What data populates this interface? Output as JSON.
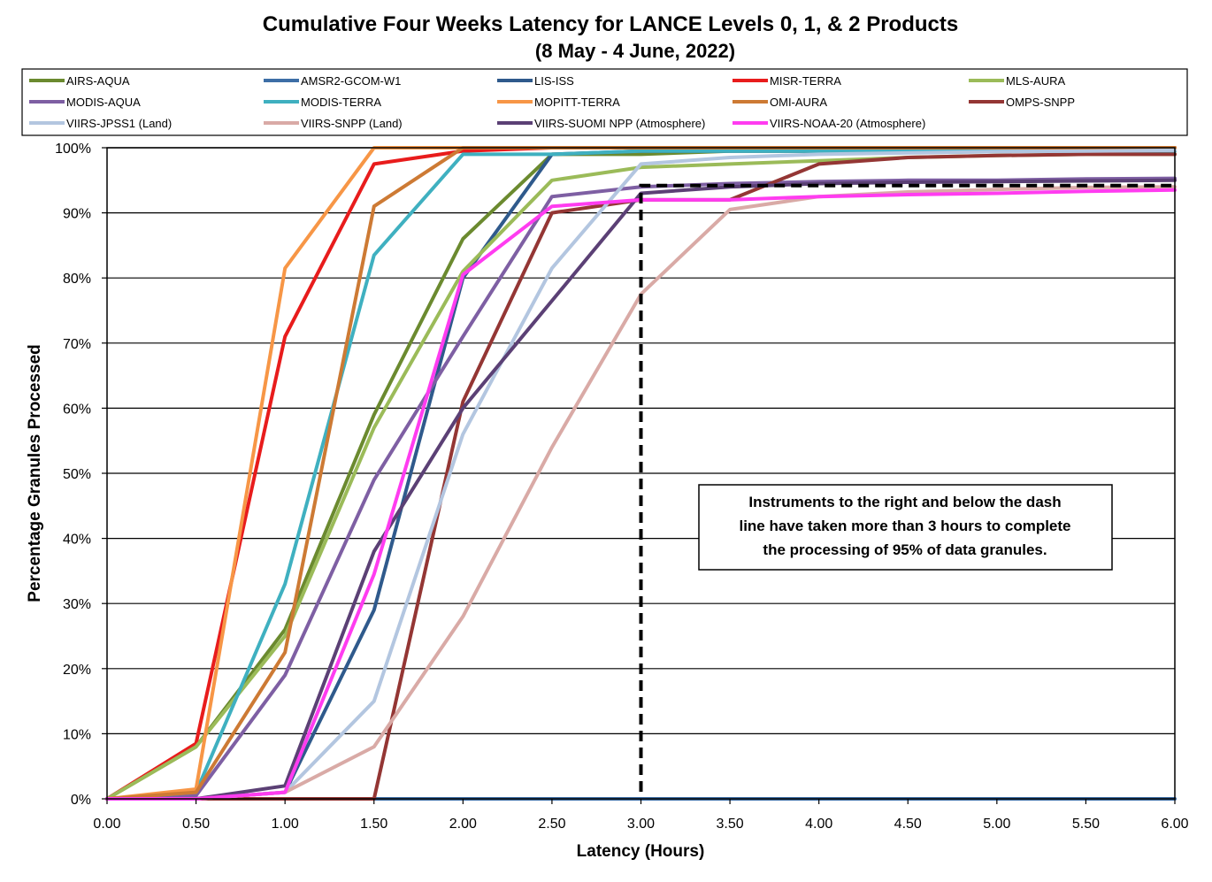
{
  "chart_data": {
    "type": "line",
    "title": "Cumulative Four Weeks Latency  for LANCE Levels 0, 1, & 2 Products",
    "subtitle": "(8  May   -  4  June,  2022)",
    "xlabel": "Latency (Hours)",
    "ylabel": "Percentage Granules Processed",
    "x": [
      0,
      0.5,
      1.0,
      1.5,
      2.0,
      2.5,
      3.0,
      3.5,
      4.0,
      4.5,
      5.0,
      5.5,
      6.0
    ],
    "x_tick_labels": [
      "0.00",
      "0.50",
      "1.00",
      "1.50",
      "2.00",
      "2.50",
      "3.00",
      "3.50",
      "4.00",
      "4.50",
      "5.00",
      "5.50",
      "6.00"
    ],
    "y_tick_labels": [
      "0%",
      "10%",
      "20%",
      "30%",
      "40%",
      "50%",
      "60%",
      "70%",
      "80%",
      "90%",
      "100%"
    ],
    "xlim": [
      0,
      6
    ],
    "ylim": [
      0,
      100
    ],
    "grid": "horizontal",
    "legend_position": "top",
    "series": [
      {
        "name": "AIRS-AQUA",
        "color": "#6b8a2f",
        "values": [
          0,
          8,
          26,
          59,
          86,
          99,
          99,
          99.5,
          99.5,
          99.5,
          99.5,
          99.5,
          99.5
        ]
      },
      {
        "name": "AMSR2-GCOM-W1",
        "color": "#3d6ea6",
        "values": [
          0,
          0,
          0,
          0,
          0,
          0,
          0,
          0,
          0,
          0,
          0,
          0,
          0
        ]
      },
      {
        "name": "LIS-ISS",
        "color": "#2f5a8c",
        "values": [
          0,
          0,
          1,
          29,
          80,
          99,
          99.5,
          99.5,
          99.5,
          99.5,
          99.5,
          99.5,
          99.5
        ]
      },
      {
        "name": "MISR-TERRA",
        "color": "#e81c1c",
        "values": [
          0,
          8.5,
          71,
          97.5,
          99.5,
          100,
          100,
          100,
          100,
          100,
          100,
          100,
          100
        ]
      },
      {
        "name": "MLS-AURA",
        "color": "#9bbb59",
        "values": [
          0,
          8,
          25,
          57,
          81,
          95,
          97,
          97.5,
          98,
          98.5,
          98.8,
          99,
          99
        ]
      },
      {
        "name": "MODIS-AQUA",
        "color": "#7e5fa3",
        "values": [
          0,
          0.5,
          19,
          49,
          71,
          92.5,
          94,
          94.5,
          94.8,
          95,
          95,
          95.2,
          95.3
        ]
      },
      {
        "name": "MODIS-TERRA",
        "color": "#3fb0c0",
        "values": [
          0,
          1,
          33,
          83.5,
          99,
          99,
          99.5,
          99.5,
          99.5,
          99.5,
          99.5,
          99.5,
          99.5
        ]
      },
      {
        "name": "MOPITT-TERRA",
        "color": "#f79646",
        "values": [
          0,
          1.5,
          81.5,
          100,
          100,
          100,
          100,
          100,
          100,
          100,
          100,
          100,
          100
        ]
      },
      {
        "name": "OMI-AURA",
        "color": "#cd7a34",
        "values": [
          0,
          1,
          22.5,
          91,
          100,
          100,
          100,
          100,
          100,
          100,
          100,
          100,
          100
        ]
      },
      {
        "name": "OMPS-SNPP",
        "color": "#943634",
        "values": [
          0,
          0,
          0,
          0,
          61,
          90,
          92,
          92,
          97.5,
          98.5,
          98.8,
          99,
          99
        ]
      },
      {
        "name": "VIIRS-JPSS1 (Land)",
        "color": "#b3c6e0",
        "values": [
          0,
          0,
          1,
          15,
          56,
          81.5,
          97.5,
          98.5,
          99,
          99.2,
          99.4,
          99.5,
          99.6
        ]
      },
      {
        "name": "VIIRS-SNPP (Land)",
        "color": "#d9aaa6",
        "values": [
          0,
          0,
          1,
          8,
          28,
          54,
          77.5,
          90.5,
          92.5,
          93.2,
          93.6,
          93.9,
          94
        ]
      },
      {
        "name": "VIIRS-SUOMI NPP (Atmosphere)",
        "color": "#5b4075",
        "values": [
          0,
          0,
          2,
          38,
          60,
          76.5,
          93,
          94,
          94.5,
          94.7,
          94.8,
          94.9,
          95
        ]
      },
      {
        "name": "VIIRS-NOAA-20 (Atmosphere)",
        "color": "#ff3cf0",
        "values": [
          0,
          0,
          1,
          34.5,
          80.5,
          91,
          92,
          92,
          92.5,
          92.8,
          93,
          93.3,
          93.5
        ]
      }
    ],
    "annotation": {
      "text_lines": [
        "Instruments to the right and below the dash",
        "line have taken more than 3 hours to complete",
        "the processing of 95% of data granules."
      ],
      "dash_line": {
        "vertical_x": 3.0,
        "horizontal_y": 94.2,
        "x_end": 6.0
      }
    }
  }
}
